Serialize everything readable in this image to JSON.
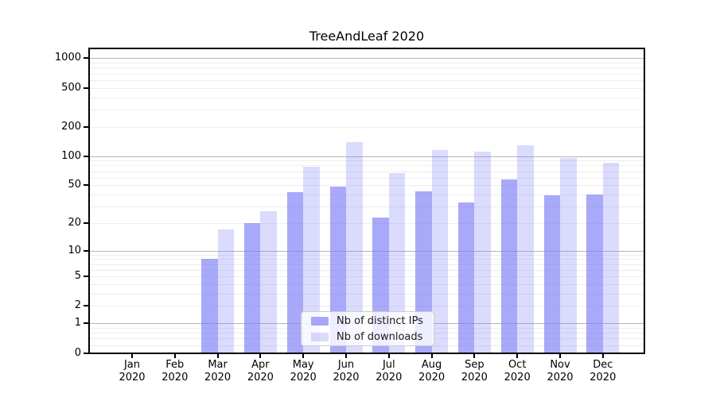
{
  "figure": {
    "background": "#ffffff"
  },
  "chart_data": {
    "type": "bar",
    "title": "TreeAndLeaf 2020",
    "categories": [
      "Jan 2020",
      "Feb 2020",
      "Mar 2020",
      "Apr 2020",
      "May 2020",
      "Jun 2020",
      "Jul 2020",
      "Aug 2020",
      "Sep 2020",
      "Oct 2020",
      "Nov 2020",
      "Dec 2020"
    ],
    "series": [
      {
        "name": "Nb of distinct IPs",
        "color": "rgba(124,124,247,0.66)",
        "values": [
          0,
          0,
          8,
          20,
          42,
          48,
          23,
          43,
          33,
          57,
          39,
          40
        ]
      },
      {
        "name": "Nb of downloads",
        "color": "rgba(124,124,247,0.28)",
        "values": [
          0,
          0,
          17,
          27,
          78,
          138,
          67,
          116,
          112,
          128,
          95,
          85
        ]
      }
    ],
    "xlabel": "",
    "ylabel": "",
    "yscale": "symlog",
    "yticks": [
      0,
      1,
      2,
      5,
      10,
      20,
      50,
      100,
      200,
      500,
      1000
    ],
    "ylim": [
      0,
      1260
    ],
    "grid": true,
    "legend_position": "lower center",
    "grid_major_color": "#b5b5b5",
    "grid_minor_color": "#ededed",
    "axis_color": "#000000",
    "text_color": "#000000"
  }
}
